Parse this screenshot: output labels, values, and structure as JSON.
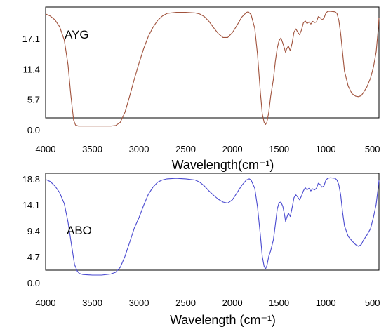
{
  "chart_data": [
    {
      "type": "line",
      "label": "AYG",
      "xlabel": "Wavelength(cm⁻¹)",
      "ylabel": "",
      "xlim": [
        4000,
        430
      ],
      "ylim": [
        0,
        23
      ],
      "x_ticks": [
        "4000",
        "3500",
        "3000",
        "2500",
        "2000",
        "1500",
        "1000",
        "500"
      ],
      "y_ticks": [
        "0.0",
        "5.7",
        "11.4",
        "17.1"
      ],
      "color": "#a0523c",
      "series": [
        {
          "x": [
            4000,
            3950,
            3900,
            3850,
            3800,
            3760,
            3730,
            3700,
            3680,
            3650,
            3600,
            3500,
            3400,
            3300,
            3250,
            3200,
            3150,
            3100,
            3050,
            3000,
            2950,
            2900,
            2850,
            2800,
            2750,
            2700,
            2600,
            2500,
            2400,
            2350,
            2300,
            2250,
            2200,
            2150,
            2100,
            2050,
            2000,
            1950,
            1900,
            1850,
            1830,
            1800,
            1760,
            1730,
            1700,
            1680,
            1660,
            1645,
            1630,
            1610,
            1590,
            1560,
            1540,
            1520,
            1500,
            1480,
            1460,
            1440,
            1430,
            1420,
            1400,
            1380,
            1360,
            1340,
            1320,
            1300,
            1280,
            1260,
            1240,
            1220,
            1200,
            1180,
            1160,
            1140,
            1120,
            1100,
            1080,
            1060,
            1040,
            1020,
            1000,
            980,
            950,
            900,
            880,
            860,
            840,
            820,
            800,
            760,
            720,
            680,
            650,
            620,
            600,
            560,
            520,
            490,
            460,
            440,
            430
          ],
          "y": [
            21.7,
            21.3,
            20.6,
            19.3,
            16.8,
            12.2,
            6.5,
            1.8,
            0.9,
            0.7,
            0.7,
            0.7,
            0.7,
            0.7,
            0.8,
            1.4,
            3.3,
            6.3,
            9.5,
            12.5,
            15.2,
            17.5,
            19.2,
            20.5,
            21.3,
            21.8,
            22.0,
            22.0,
            21.9,
            21.7,
            21.2,
            20.3,
            19.1,
            18.0,
            17.3,
            17.3,
            18.2,
            19.6,
            21.1,
            22.0,
            22.1,
            21.6,
            19.0,
            14.0,
            7.0,
            3.0,
            1.4,
            1.0,
            1.4,
            3.3,
            6.3,
            9.5,
            12.8,
            15.3,
            16.7,
            17.2,
            16.2,
            15.1,
            14.5,
            15.1,
            15.7,
            14.8,
            16.3,
            18.3,
            18.9,
            18.3,
            17.8,
            18.7,
            20.0,
            20.4,
            19.9,
            20.2,
            19.8,
            20.3,
            20.1,
            20.2,
            21.2,
            21.0,
            20.6,
            20.9,
            21.8,
            22.2,
            22.2,
            22.1,
            21.8,
            20.5,
            18.0,
            14.5,
            11.0,
            8.2,
            6.8,
            6.3,
            6.2,
            6.4,
            6.9,
            8.0,
            9.7,
            11.7,
            14.6,
            18.5,
            21.0
          ]
        }
      ]
    },
    {
      "type": "line",
      "label": "ABO",
      "xlabel": "Wavelength (cm⁻¹)",
      "ylabel": "",
      "xlim": [
        4000,
        430
      ],
      "ylim": [
        0,
        19.8
      ],
      "x_ticks": [
        "4000",
        "3500",
        "3000",
        "2500",
        "2000",
        "1500",
        "1000",
        "500"
      ],
      "y_ticks": [
        "0.0",
        "4.7",
        "9.4",
        "14.1",
        "18.8"
      ],
      "color": "#4a4ad0",
      "series": [
        {
          "x": [
            4000,
            3950,
            3900,
            3850,
            3800,
            3760,
            3720,
            3690,
            3660,
            3640,
            3600,
            3500,
            3400,
            3300,
            3250,
            3200,
            3150,
            3100,
            3050,
            3000,
            2950,
            2900,
            2850,
            2800,
            2750,
            2700,
            2600,
            2500,
            2400,
            2350,
            2300,
            2250,
            2200,
            2150,
            2100,
            2050,
            2000,
            1950,
            1900,
            1850,
            1820,
            1800,
            1760,
            1730,
            1700,
            1680,
            1660,
            1645,
            1630,
            1610,
            1590,
            1560,
            1540,
            1520,
            1500,
            1480,
            1460,
            1440,
            1430,
            1420,
            1400,
            1380,
            1360,
            1340,
            1320,
            1300,
            1280,
            1260,
            1240,
            1220,
            1200,
            1180,
            1160,
            1140,
            1120,
            1100,
            1080,
            1060,
            1040,
            1020,
            1000,
            980,
            950,
            900,
            880,
            860,
            840,
            820,
            800,
            760,
            720,
            680,
            650,
            620,
            600,
            560,
            520,
            490,
            460,
            440,
            430
          ],
          "y": [
            18.7,
            18.3,
            17.5,
            16.3,
            14.3,
            11.0,
            6.5,
            3.3,
            2.1,
            1.7,
            1.5,
            1.4,
            1.4,
            1.6,
            1.9,
            2.8,
            4.8,
            7.3,
            9.9,
            11.8,
            14.0,
            16.0,
            17.3,
            18.2,
            18.6,
            18.8,
            18.9,
            18.8,
            18.6,
            18.2,
            17.5,
            16.6,
            15.8,
            15.1,
            14.6,
            14.4,
            15.0,
            16.3,
            17.6,
            18.6,
            18.8,
            18.6,
            17.1,
            13.6,
            8.6,
            4.8,
            3.0,
            2.5,
            3.1,
            4.8,
            5.8,
            7.8,
            10.5,
            13.3,
            14.5,
            14.6,
            13.8,
            12.2,
            11.1,
            11.7,
            12.6,
            12.0,
            13.6,
            15.4,
            15.9,
            15.5,
            15.0,
            15.7,
            16.6,
            17.2,
            16.8,
            17.1,
            16.6,
            17.0,
            16.8,
            17.1,
            18.0,
            17.8,
            17.3,
            17.5,
            18.5,
            18.9,
            19.0,
            18.9,
            18.6,
            17.7,
            15.9,
            12.8,
            10.3,
            8.4,
            7.6,
            6.9,
            6.6,
            6.9,
            7.6,
            8.6,
            9.8,
            11.8,
            14.2,
            17.0,
            18.5
          ]
        }
      ]
    }
  ]
}
